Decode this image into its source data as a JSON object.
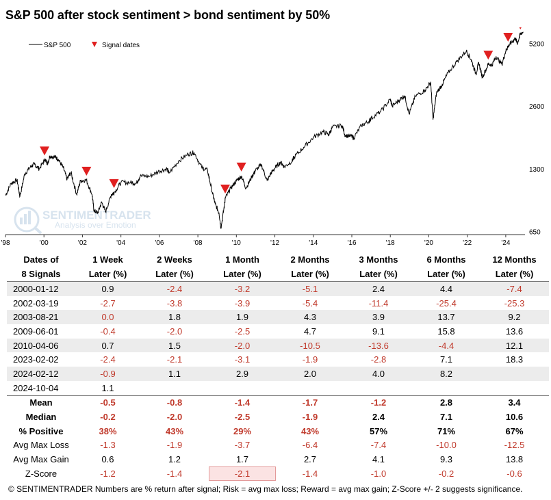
{
  "title": "S&P 500 after stock sentiment > bond sentiment by 50%",
  "chart_data": {
    "type": "line",
    "title": "S&P 500 after stock sentiment > bond sentiment by 50%",
    "y_scale": "log",
    "ylim": [
      620,
      6200
    ],
    "xlim": [
      1998.0,
      2025.0
    ],
    "y_tick_labels": [
      "650",
      "1300",
      "2600",
      "5200"
    ],
    "y_tick_values": [
      650,
      1300,
      2600,
      5200
    ],
    "x_tick_labels": [
      "'98",
      "'00",
      "'02",
      "'04",
      "'06",
      "'08",
      "'10",
      "'12",
      "'14",
      "'16",
      "'18",
      "'20",
      "'22",
      "'24"
    ],
    "x_tick_values": [
      1998,
      2000,
      2002,
      2004,
      2006,
      2008,
      2010,
      2012,
      2014,
      2016,
      2018,
      2020,
      2022,
      2024
    ],
    "legend": [
      "S&P 500",
      "Signal dates"
    ],
    "legend_position": "top-left",
    "series": [
      {
        "name": "S&P 500",
        "points": [
          [
            1998.0,
            970
          ],
          [
            1998.3,
            1110
          ],
          [
            1998.6,
            1150
          ],
          [
            1998.75,
            960
          ],
          [
            1999.0,
            1230
          ],
          [
            1999.3,
            1330
          ],
          [
            1999.5,
            1370
          ],
          [
            1999.75,
            1300
          ],
          [
            2000.05,
            1440
          ],
          [
            2000.2,
            1380
          ],
          [
            2000.3,
            1500
          ],
          [
            2000.6,
            1480
          ],
          [
            2000.75,
            1440
          ],
          [
            2001.0,
            1320
          ],
          [
            2001.2,
            1160
          ],
          [
            2001.4,
            1250
          ],
          [
            2001.7,
            980
          ],
          [
            2001.9,
            1140
          ],
          [
            2002.2,
            1150
          ],
          [
            2002.5,
            980
          ],
          [
            2002.6,
            820
          ],
          [
            2002.8,
            800
          ],
          [
            2003.0,
            900
          ],
          [
            2003.2,
            810
          ],
          [
            2003.5,
            980
          ],
          [
            2003.65,
            1000
          ],
          [
            2004.0,
            1120
          ],
          [
            2004.5,
            1120
          ],
          [
            2004.8,
            1110
          ],
          [
            2005.0,
            1200
          ],
          [
            2005.5,
            1200
          ],
          [
            2006.0,
            1270
          ],
          [
            2006.4,
            1300
          ],
          [
            2006.5,
            1240
          ],
          [
            2007.0,
            1420
          ],
          [
            2007.5,
            1530
          ],
          [
            2007.8,
            1560
          ],
          [
            2008.2,
            1320
          ],
          [
            2008.5,
            1280
          ],
          [
            2008.75,
            1000
          ],
          [
            2008.9,
            880
          ],
          [
            2009.1,
            800
          ],
          [
            2009.2,
            676
          ],
          [
            2009.4,
            900
          ],
          [
            2009.42,
            940
          ],
          [
            2009.7,
            1050
          ],
          [
            2010.0,
            1140
          ],
          [
            2010.27,
            1200
          ],
          [
            2010.5,
            1050
          ],
          [
            2010.8,
            1190
          ],
          [
            2011.0,
            1280
          ],
          [
            2011.3,
            1360
          ],
          [
            2011.6,
            1140
          ],
          [
            2011.8,
            1240
          ],
          [
            2012.0,
            1310
          ],
          [
            2012.3,
            1400
          ],
          [
            2012.5,
            1330
          ],
          [
            2012.9,
            1420
          ],
          [
            2013.0,
            1480
          ],
          [
            2013.5,
            1650
          ],
          [
            2014.0,
            1840
          ],
          [
            2014.5,
            1960
          ],
          [
            2014.8,
            1900
          ],
          [
            2015.0,
            2060
          ],
          [
            2015.5,
            2100
          ],
          [
            2015.65,
            1880
          ],
          [
            2016.0,
            1860
          ],
          [
            2016.1,
            1830
          ],
          [
            2016.5,
            2100
          ],
          [
            2016.9,
            2200
          ],
          [
            2017.0,
            2270
          ],
          [
            2017.5,
            2450
          ],
          [
            2018.0,
            2800
          ],
          [
            2018.1,
            2600
          ],
          [
            2018.5,
            2800
          ],
          [
            2018.75,
            2920
          ],
          [
            2018.98,
            2380
          ],
          [
            2019.3,
            2900
          ],
          [
            2019.8,
            3100
          ],
          [
            2020.1,
            3380
          ],
          [
            2020.22,
            2240
          ],
          [
            2020.4,
            3000
          ],
          [
            2020.7,
            3300
          ],
          [
            2021.0,
            3750
          ],
          [
            2021.5,
            4300
          ],
          [
            2021.95,
            4780
          ],
          [
            2022.2,
            4350
          ],
          [
            2022.45,
            3700
          ],
          [
            2022.6,
            4200
          ],
          [
            2022.78,
            3580
          ],
          [
            2023.09,
            4120
          ],
          [
            2023.3,
            4100
          ],
          [
            2023.5,
            4500
          ],
          [
            2023.8,
            4120
          ],
          [
            2024.0,
            4780
          ],
          [
            2024.12,
            5020
          ],
          [
            2024.3,
            5250
          ],
          [
            2024.5,
            5500
          ],
          [
            2024.6,
            5200
          ],
          [
            2024.76,
            5750
          ],
          [
            2024.9,
            5900
          ]
        ]
      }
    ],
    "signals": [
      {
        "date": "2000-01-12",
        "x": 2000.03
      },
      {
        "date": "2002-03-19",
        "x": 2002.21
      },
      {
        "date": "2003-08-21",
        "x": 2003.64
      },
      {
        "date": "2009-06-01",
        "x": 2009.42
      },
      {
        "date": "2010-04-06",
        "x": 2010.26
      },
      {
        "date": "2023-02-02",
        "x": 2023.09
      },
      {
        "date": "2024-02-12",
        "x": 2024.12
      },
      {
        "date": "2024-10-04",
        "x": 2024.76
      }
    ]
  },
  "watermark": {
    "brand": "SENTIMENTRADER",
    "tagline": "Analysis over Emotion"
  },
  "table": {
    "headers": [
      [
        "Dates of",
        "8 Signals"
      ],
      [
        "1 Week",
        "Later (%)"
      ],
      [
        "2 Weeks",
        "Later (%)"
      ],
      [
        "1 Month",
        "Later (%)"
      ],
      [
        "2 Months",
        "Later (%)"
      ],
      [
        "3 Months",
        "Later (%)"
      ],
      [
        "6 Months",
        "Later (%)"
      ],
      [
        "12 Months",
        "Later (%)"
      ]
    ],
    "rows": [
      {
        "label": "2000-01-12",
        "values": [
          "0.9",
          "-2.4",
          "-3.2",
          "-5.1",
          "2.4",
          "4.4",
          "-7.4"
        ]
      },
      {
        "label": "2002-03-19",
        "values": [
          "-2.7",
          "-3.8",
          "-3.9",
          "-5.4",
          "-11.4",
          "-25.4",
          "-25.3"
        ]
      },
      {
        "label": "2003-08-21",
        "values": [
          "0.0",
          "1.8",
          "1.9",
          "4.3",
          "3.9",
          "13.7",
          "9.2"
        ]
      },
      {
        "label": "2009-06-01",
        "values": [
          "-0.4",
          "-2.0",
          "-2.5",
          "4.7",
          "9.1",
          "15.8",
          "13.6"
        ]
      },
      {
        "label": "2010-04-06",
        "values": [
          "0.7",
          "1.5",
          "-2.0",
          "-10.5",
          "-13.6",
          "-4.4",
          "12.1"
        ]
      },
      {
        "label": "2023-02-02",
        "values": [
          "-2.4",
          "-2.1",
          "-3.1",
          "-1.9",
          "-2.8",
          "7.1",
          "18.3"
        ]
      },
      {
        "label": "2024-02-12",
        "values": [
          "-0.9",
          "1.1",
          "2.9",
          "2.0",
          "4.0",
          "8.2",
          ""
        ]
      },
      {
        "label": "2024-10-04",
        "values": [
          "1.1",
          "",
          "",
          "",
          "",
          "",
          ""
        ]
      }
    ],
    "summary": [
      {
        "label": "Mean",
        "values": [
          "-0.5",
          "-0.8",
          "-1.4",
          "-1.7",
          "-1.2",
          "2.8",
          "3.4"
        ],
        "bold": true
      },
      {
        "label": "Median",
        "values": [
          "-0.2",
          "-2.0",
          "-2.5",
          "-1.9",
          "2.4",
          "7.1",
          "10.6"
        ],
        "bold": true
      },
      {
        "label": "% Positive",
        "values": [
          "38%",
          "43%",
          "29%",
          "43%",
          "57%",
          "71%",
          "67%"
        ],
        "bold": true
      },
      {
        "label": "Avg Max Loss",
        "values": [
          "-1.3",
          "-1.9",
          "-3.7",
          "-6.4",
          "-7.4",
          "-10.0",
          "-12.5"
        ],
        "bold": false
      },
      {
        "label": "Avg Max Gain",
        "values": [
          "0.6",
          "1.2",
          "1.7",
          "2.7",
          "4.1",
          "9.3",
          "13.8"
        ],
        "bold": false
      },
      {
        "label": "Z-Score",
        "values": [
          "-1.2",
          "-1.4",
          "-2.1",
          "-1.4",
          "-1.0",
          "-0.2",
          "-0.6"
        ],
        "bold": false
      }
    ]
  },
  "footer": "© SENTIMENTRADER  Numbers are % return after signal; Risk = avg max loss; Reward = avg max gain; Z-Score +/- 2 suggests significance.",
  "colors": {
    "negative": "#c0392b",
    "line": "#000000",
    "signal_marker": "#e02020",
    "row_shade": "#ececec",
    "highlight": "#fbe3e3"
  }
}
